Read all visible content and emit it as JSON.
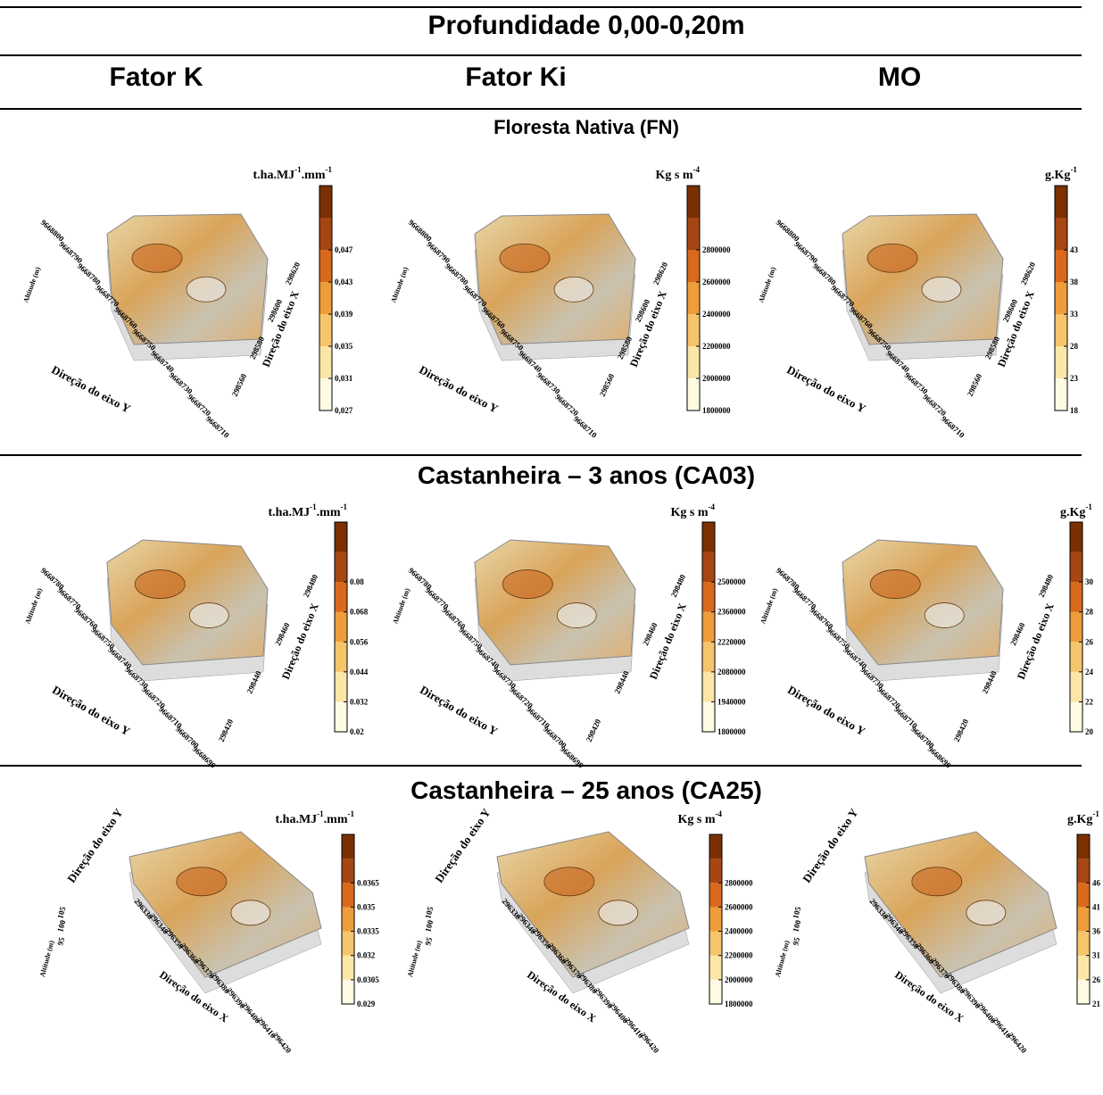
{
  "header": {
    "title": "Profundidade 0,00-0,20m",
    "columns": [
      "Fator K",
      "Fator Ki",
      "MO"
    ]
  },
  "sections": [
    {
      "title": "Floresta Nativa (FN)",
      "y_label": "Direção do eixo Y",
      "x_label": "Direção do eixo X",
      "z_label": "Altitude (m)",
      "y_ticks": [
        "9668800",
        "9668790",
        "9668780",
        "9668770",
        "9668760",
        "9668750",
        "9668740",
        "9668730",
        "9668720",
        "9668710"
      ],
      "x_ticks": [
        "298560",
        "298580",
        "298600",
        "298620"
      ],
      "panels": [
        {
          "unit": [
            "t.ha.MJ",
            "-1",
            ".mm",
            "-1"
          ],
          "colorbar_ticks": [
            "0,027",
            "0,031",
            "0,035",
            "0,039",
            "0,043",
            "0,047"
          ]
        },
        {
          "unit": [
            "Kg s m",
            "-4"
          ],
          "colorbar_ticks": [
            "1800000",
            "2000000",
            "2200000",
            "2400000",
            "2600000",
            "2800000"
          ]
        },
        {
          "unit": [
            "g.Kg",
            "-1"
          ],
          "colorbar_ticks": [
            "18",
            "23",
            "28",
            "33",
            "38",
            "43"
          ]
        }
      ]
    },
    {
      "title": "Castanheira – 3 anos (CA03)",
      "y_label": "Direção do eixo Y",
      "x_label": "Direção do eixo X",
      "z_label": "Altitude (m)",
      "y_ticks": [
        "9668780",
        "9668770",
        "9668760",
        "9668750",
        "9668740",
        "9668730",
        "9668720",
        "9668710",
        "9668700",
        "9668690"
      ],
      "x_ticks": [
        "298420",
        "298440",
        "298460",
        "298480"
      ],
      "panels": [
        {
          "unit": [
            "t.ha.MJ",
            "-1",
            ".mm",
            "-1"
          ],
          "colorbar_ticks": [
            "0.02",
            "0.032",
            "0.044",
            "0.056",
            "0.068",
            "0.08"
          ]
        },
        {
          "unit": [
            "Kg s m",
            "-4"
          ],
          "colorbar_ticks": [
            "1800000",
            "1940000",
            "2080000",
            "2220000",
            "2360000",
            "2500000"
          ]
        },
        {
          "unit": [
            "g.Kg",
            "-1"
          ],
          "colorbar_ticks": [
            "20",
            "22",
            "24",
            "26",
            "28",
            "30"
          ]
        }
      ]
    },
    {
      "title": "Castanheira – 25 anos (CA25)",
      "y_label": "Direção do eixo Y",
      "x_label": "Direção do eixo X",
      "z_label": "Altitude (m)",
      "z_ticks": [
        "95",
        "100",
        "105"
      ],
      "x_ticks": [
        "296330",
        "296340",
        "296350",
        "296360",
        "296370",
        "296380",
        "296390",
        "296400",
        "296410",
        "296420"
      ],
      "panels": [
        {
          "unit": [
            "t.ha.MJ",
            "-1",
            ".mm",
            "-1"
          ],
          "colorbar_ticks": [
            "0.029",
            "0.0305",
            "0.032",
            "0.0335",
            "0.035",
            "0.0365"
          ]
        },
        {
          "unit": [
            "Kg s m",
            "-4"
          ],
          "colorbar_ticks": [
            "1800000",
            "2000000",
            "2200000",
            "2400000",
            "2600000",
            "2800000"
          ]
        },
        {
          "unit": [
            "g.Kg",
            "-1"
          ],
          "colorbar_ticks": [
            "21",
            "26",
            "31",
            "36",
            "41",
            "46"
          ]
        }
      ]
    }
  ]
}
